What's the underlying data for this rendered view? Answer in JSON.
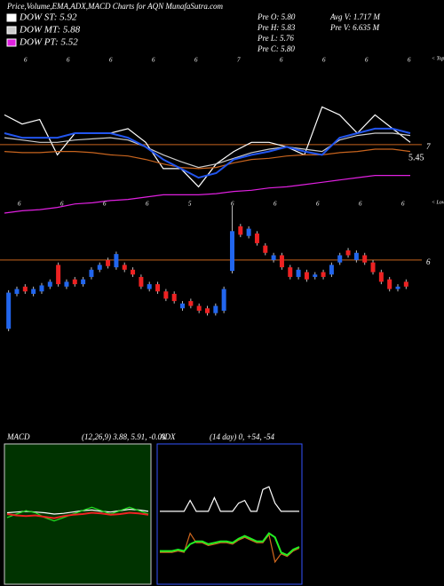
{
  "chart_data": [
    {
      "type": "line",
      "title": "Price,Volume,EMA,ADX,MACD Charts for AQN  MunafaSutra.com",
      "ylim": [
        6.4,
        7.8
      ],
      "yticks": [
        7
      ],
      "tick_color": "#c8641e",
      "annotations": [
        "Pre  O: 5.80",
        "Pre  H: 5.83",
        "Pre  L: 5.76",
        "Pre  C: 5.80",
        "Avg V: 1.717 M",
        "Pre  V: 6.635 M",
        "5.45",
        "< Tops",
        "< Lows"
      ],
      "tops": [
        "6",
        "6",
        "6",
        "6",
        "6",
        "7",
        "6",
        "6",
        "6",
        "6"
      ],
      "lows": [
        "6",
        "6",
        "6",
        "6",
        "5",
        "6",
        "6",
        "6",
        "6",
        "6"
      ],
      "series": [
        {
          "name": "DOW ST: 5.92",
          "color": "#ffffff",
          "values": [
            7.26,
            7.18,
            7.22,
            6.91,
            7.1,
            7.1,
            7.1,
            7.14,
            7.02,
            6.79,
            6.79,
            6.63,
            6.83,
            6.94,
            7.02,
            7.02,
            6.98,
            6.91,
            7.33,
            7.26,
            7.1,
            7.26,
            7.14,
            7.02
          ]
        },
        {
          "name": "DOW MT: 5.88",
          "color": "#cccccc",
          "values": [
            7.06,
            7.04,
            7.02,
            7.02,
            7.04,
            7.05,
            7.06,
            7.04,
            6.98,
            6.91,
            6.85,
            6.8,
            6.83,
            6.88,
            6.93,
            6.96,
            6.98,
            6.96,
            6.94,
            7.04,
            7.08,
            7.1,
            7.1,
            7.08
          ]
        },
        {
          "name": "DOW PT: 5.52",
          "color": "#e020e0",
          "values": [
            6.4,
            6.42,
            6.43,
            6.45,
            6.48,
            6.49,
            6.51,
            6.52,
            6.54,
            6.56,
            6.56,
            6.56,
            6.57,
            6.59,
            6.6,
            6.62,
            6.63,
            6.65,
            6.67,
            6.69,
            6.71,
            6.73,
            6.73,
            6.73
          ]
        },
        {
          "color": "#c8641e",
          "values": [
            6.94,
            6.93,
            6.93,
            6.94,
            6.94,
            6.93,
            6.91,
            6.9,
            6.87,
            6.83,
            6.8,
            6.79,
            6.8,
            6.84,
            6.87,
            6.88,
            6.9,
            6.91,
            6.91,
            6.93,
            6.94,
            6.96,
            6.96,
            6.94
          ]
        },
        {
          "color": "#2255ee",
          "values": [
            7.1,
            7.06,
            7.06,
            7.06,
            7.1,
            7.1,
            7.1,
            7.06,
            6.98,
            6.87,
            6.79,
            6.71,
            6.75,
            6.87,
            6.91,
            6.94,
            6.98,
            6.94,
            6.91,
            7.06,
            7.1,
            7.14,
            7.14,
            7.1
          ]
        }
      ]
    },
    {
      "type": "candlestick",
      "ylim": [
        5.3,
        6.5
      ],
      "yticks": [
        6
      ],
      "tick_color": "#c8641e",
      "up_color": "#2266ee",
      "down_color": "#ee2222",
      "open": [
        5.43,
        5.72,
        5.78,
        5.72,
        5.74,
        5.78,
        5.96,
        5.78,
        5.84,
        5.8,
        5.86,
        5.92,
        6.0,
        5.94,
        5.96,
        5.92,
        5.86,
        5.76,
        5.8,
        5.74,
        5.72,
        5.6,
        5.66,
        5.62,
        5.6,
        5.56,
        5.58,
        5.91,
        6.28,
        6.2,
        6.22,
        6.12,
        6.0,
        6.04,
        5.94,
        5.86,
        5.9,
        5.86,
        5.9,
        5.88,
        5.98,
        6.08,
        6.0,
        6.04,
        5.98,
        5.9,
        5.84,
        5.76,
        5.82
      ],
      "high": [
        5.75,
        5.78,
        5.8,
        5.78,
        5.81,
        5.84,
        5.98,
        5.84,
        5.86,
        5.86,
        5.94,
        5.98,
        6.02,
        6.07,
        5.98,
        5.94,
        5.88,
        5.82,
        5.82,
        5.76,
        5.74,
        5.66,
        5.68,
        5.64,
        5.62,
        5.64,
        5.78,
        6.45,
        6.3,
        6.28,
        6.24,
        6.14,
        6.06,
        6.06,
        5.96,
        5.94,
        5.92,
        5.9,
        5.92,
        5.98,
        6.06,
        6.1,
        6.08,
        6.06,
        6.0,
        5.92,
        5.86,
        5.8,
        5.84
      ],
      "low": [
        5.41,
        5.7,
        5.72,
        5.7,
        5.72,
        5.76,
        5.78,
        5.76,
        5.78,
        5.78,
        5.84,
        5.9,
        5.93,
        5.92,
        5.9,
        5.86,
        5.76,
        5.74,
        5.72,
        5.66,
        5.64,
        5.58,
        5.6,
        5.56,
        5.54,
        5.54,
        5.56,
        5.89,
        6.19,
        6.18,
        6.12,
        6.04,
        5.98,
        5.92,
        5.84,
        5.84,
        5.82,
        5.84,
        5.84,
        5.86,
        5.96,
        6.02,
        5.98,
        5.96,
        5.88,
        5.8,
        5.74,
        5.74,
        5.76
      ],
      "close": [
        5.73,
        5.76,
        5.74,
        5.76,
        5.79,
        5.82,
        5.8,
        5.82,
        5.8,
        5.84,
        5.92,
        5.96,
        5.95,
        6.05,
        5.92,
        5.88,
        5.78,
        5.8,
        5.74,
        5.68,
        5.66,
        5.64,
        5.62,
        5.58,
        5.56,
        5.62,
        5.76,
        6.24,
        6.21,
        6.26,
        6.14,
        6.06,
        6.04,
        5.94,
        5.86,
        5.92,
        5.84,
        5.88,
        5.86,
        5.96,
        6.04,
        6.04,
        6.06,
        5.98,
        5.9,
        5.82,
        5.76,
        5.78,
        5.78
      ]
    },
    {
      "type": "line",
      "title": "MACD",
      "subtitle": "(12,26,9) 3.88, 5.91, -0.03",
      "ylim": [
        -1,
        1
      ],
      "series": [
        {
          "color": "#ffffff",
          "values": [
            0.02,
            0.03,
            0.04,
            0.03,
            0.02,
            0.0,
            0.01,
            0.03,
            0.05,
            0.06,
            0.04,
            0.03,
            0.05,
            0.07,
            0.06,
            0.04
          ]
        },
        {
          "color": "#22dd22",
          "values": [
            -0.05,
            0.0,
            0.05,
            0.02,
            -0.05,
            -0.1,
            -0.05,
            0.0,
            0.05,
            0.1,
            0.05,
            0.0,
            0.05,
            0.1,
            0.05,
            0.0
          ]
        },
        {
          "color": "#ee2222",
          "values": [
            0.0,
            -0.02,
            -0.03,
            -0.02,
            -0.04,
            -0.06,
            -0.03,
            -0.01,
            0.0,
            0.02,
            0.01,
            -0.01,
            0.0,
            0.02,
            0.01,
            -0.01
          ]
        }
      ]
    },
    {
      "type": "line",
      "title": "ADX",
      "subtitle": "(14  day) 0, +54, -54",
      "ylim": [
        0,
        100
      ],
      "series": [
        {
          "color": "#ffffff",
          "values": [
            52,
            52,
            52,
            52,
            52,
            60,
            52,
            52,
            52,
            62,
            52,
            52,
            52,
            58,
            60,
            52,
            52,
            68,
            70,
            58,
            52,
            52,
            52,
            52
          ]
        },
        {
          "color": "#d2691e",
          "values": [
            22,
            22,
            22,
            23,
            22,
            36,
            29,
            29,
            27,
            28,
            29,
            29,
            28,
            31,
            33,
            31,
            29,
            29,
            35,
            15,
            21,
            19,
            23,
            25
          ]
        },
        {
          "color": "#22ee22",
          "values": [
            23,
            23,
            23,
            24,
            23,
            28,
            30,
            30,
            28,
            29,
            30,
            30,
            29,
            32,
            34,
            32,
            30,
            30,
            36,
            33,
            22,
            20,
            24,
            26
          ]
        }
      ]
    }
  ]
}
